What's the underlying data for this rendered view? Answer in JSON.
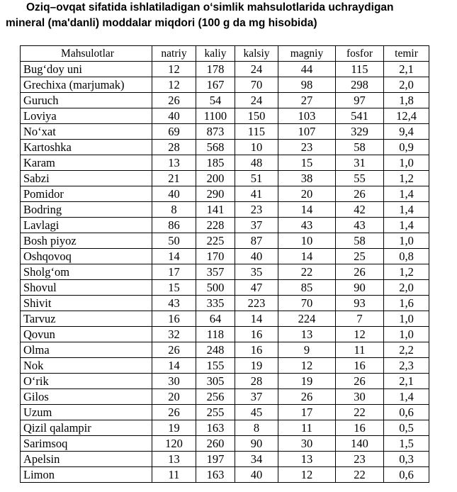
{
  "title": {
    "line1": "Oziq–ovqat sifatida ishlatiladigan o‘simlik mahsulotlarida uchraydigan",
    "line2": "mineral (ma'danli) moddalar miqdori (100 g da mg hisobida)"
  },
  "table": {
    "headers": [
      "Mahsulotlar",
      "natriy",
      "kaliy",
      "kalsiy",
      "magniy",
      "fosfor",
      "temir"
    ],
    "rows": [
      [
        "Bug‘doy uni",
        "12",
        "178",
        "24",
        "44",
        "115",
        "2,1"
      ],
      [
        "Grechixa (marjumak)",
        "12",
        "167",
        "70",
        "98",
        "298",
        "2,0"
      ],
      [
        "Guruch",
        "26",
        "54",
        "24",
        "27",
        "97",
        "1,8"
      ],
      [
        "Loviya",
        "40",
        "1100",
        "150",
        "103",
        "541",
        "12,4"
      ],
      [
        "No‘xat",
        "69",
        "873",
        "115",
        "107",
        "329",
        "9,4"
      ],
      [
        "Kartoshka",
        "28",
        "568",
        "10",
        "23",
        "58",
        "0,9"
      ],
      [
        "Karam",
        "13",
        "185",
        "48",
        "15",
        "31",
        "1,0"
      ],
      [
        "Sabzi",
        "21",
        "200",
        "51",
        "38",
        "55",
        "1,2"
      ],
      [
        "Pomidor",
        "40",
        "290",
        "41",
        "20",
        "26",
        "1,4"
      ],
      [
        "Bodring",
        "8",
        "141",
        "23",
        "14",
        "42",
        "1,4"
      ],
      [
        "Lavlagi",
        "86",
        "228",
        "37",
        "43",
        "43",
        "1,4"
      ],
      [
        "Bosh piyoz",
        "50",
        "225",
        "87",
        "10",
        "58",
        "1,0"
      ],
      [
        "Oshqovoq",
        "14",
        "170",
        "40",
        "14",
        "25",
        "0,8"
      ],
      [
        "Sholg‘om",
        "17",
        "357",
        "35",
        "22",
        "26",
        "1,2"
      ],
      [
        "Shovul",
        "15",
        "500",
        "47",
        "85",
        "90",
        "2,0"
      ],
      [
        "Shivit",
        "43",
        "335",
        "223",
        "70",
        "93",
        "1,6"
      ],
      [
        "Tarvuz",
        "16",
        "64",
        "14",
        "224",
        "7",
        "1,0"
      ],
      [
        "Qovun",
        "32",
        "118",
        "16",
        "13",
        "12",
        "1,0"
      ],
      [
        "Olma",
        "26",
        "248",
        "16",
        "9",
        "11",
        "2,2"
      ],
      [
        "Nok",
        "14",
        "155",
        "19",
        "12",
        "16",
        "2,3"
      ],
      [
        "O‘rik",
        "30",
        "305",
        "28",
        "19",
        "26",
        "2,1"
      ],
      [
        "Gilos",
        "20",
        "256",
        "37",
        "26",
        "30",
        "1,4"
      ],
      [
        "Uzum",
        "26",
        "255",
        "45",
        "17",
        "22",
        "0,6"
      ],
      [
        "Qizil qalampir",
        "19",
        "163",
        "8",
        "11",
        "16",
        "0,5"
      ],
      [
        "Sarimsoq",
        "120",
        "260",
        "90",
        "30",
        "140",
        "1,5"
      ],
      [
        "Apelsin",
        "13",
        "197",
        "34",
        "13",
        "23",
        "0,3"
      ],
      [
        "Limon",
        "11",
        "163",
        "40",
        "12",
        "22",
        "0,6"
      ]
    ]
  }
}
